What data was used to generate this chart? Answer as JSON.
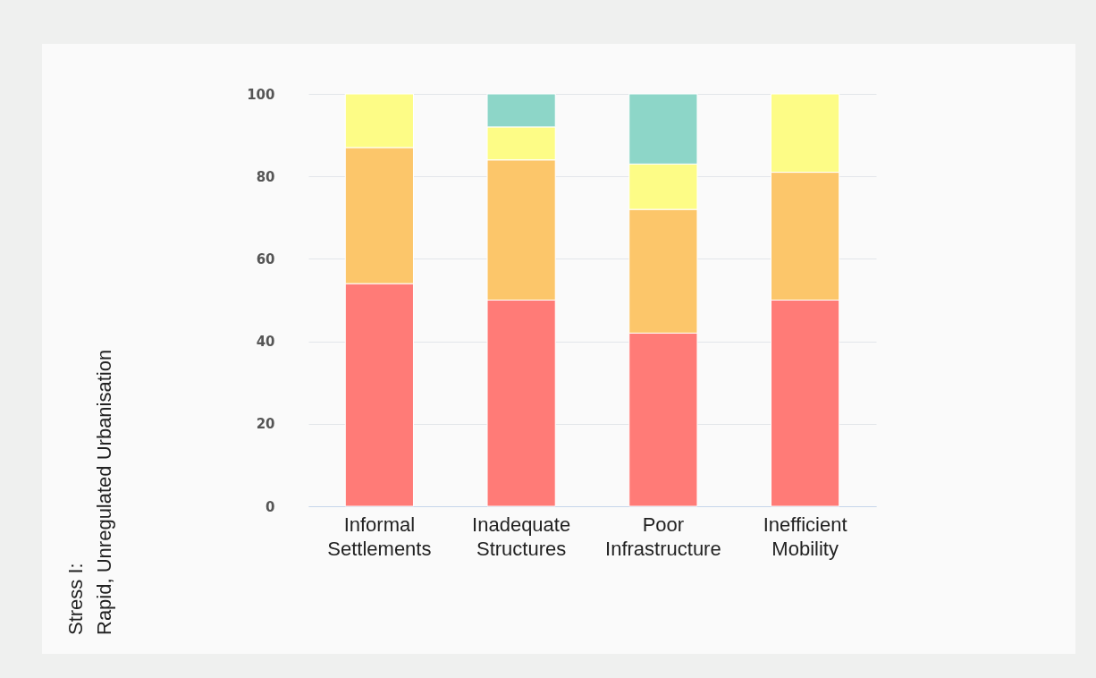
{
  "chart_data": {
    "type": "bar",
    "stacked": true,
    "annotations": [
      "Stress I:",
      "Rapid, Unregulated Urbanisation"
    ],
    "categories": [
      "Informal Settlements",
      "Inadequate Structures",
      "Poor Infrastructure",
      "Inefficient Mobility"
    ],
    "series": [
      {
        "color": "#ff7b77",
        "values": [
          54,
          50,
          42,
          50
        ]
      },
      {
        "color": "#fcc66a",
        "values": [
          33,
          34,
          30,
          31
        ]
      },
      {
        "color": "#fdfc86",
        "values": [
          13,
          8,
          11,
          19
        ]
      },
      {
        "color": "#8dd6c8",
        "values": [
          null,
          8,
          17,
          null
        ]
      }
    ],
    "ylim": [
      0,
      100
    ],
    "yticks": [
      0,
      20,
      40,
      60,
      80,
      100
    ],
    "grid": "y",
    "legend": false
  }
}
